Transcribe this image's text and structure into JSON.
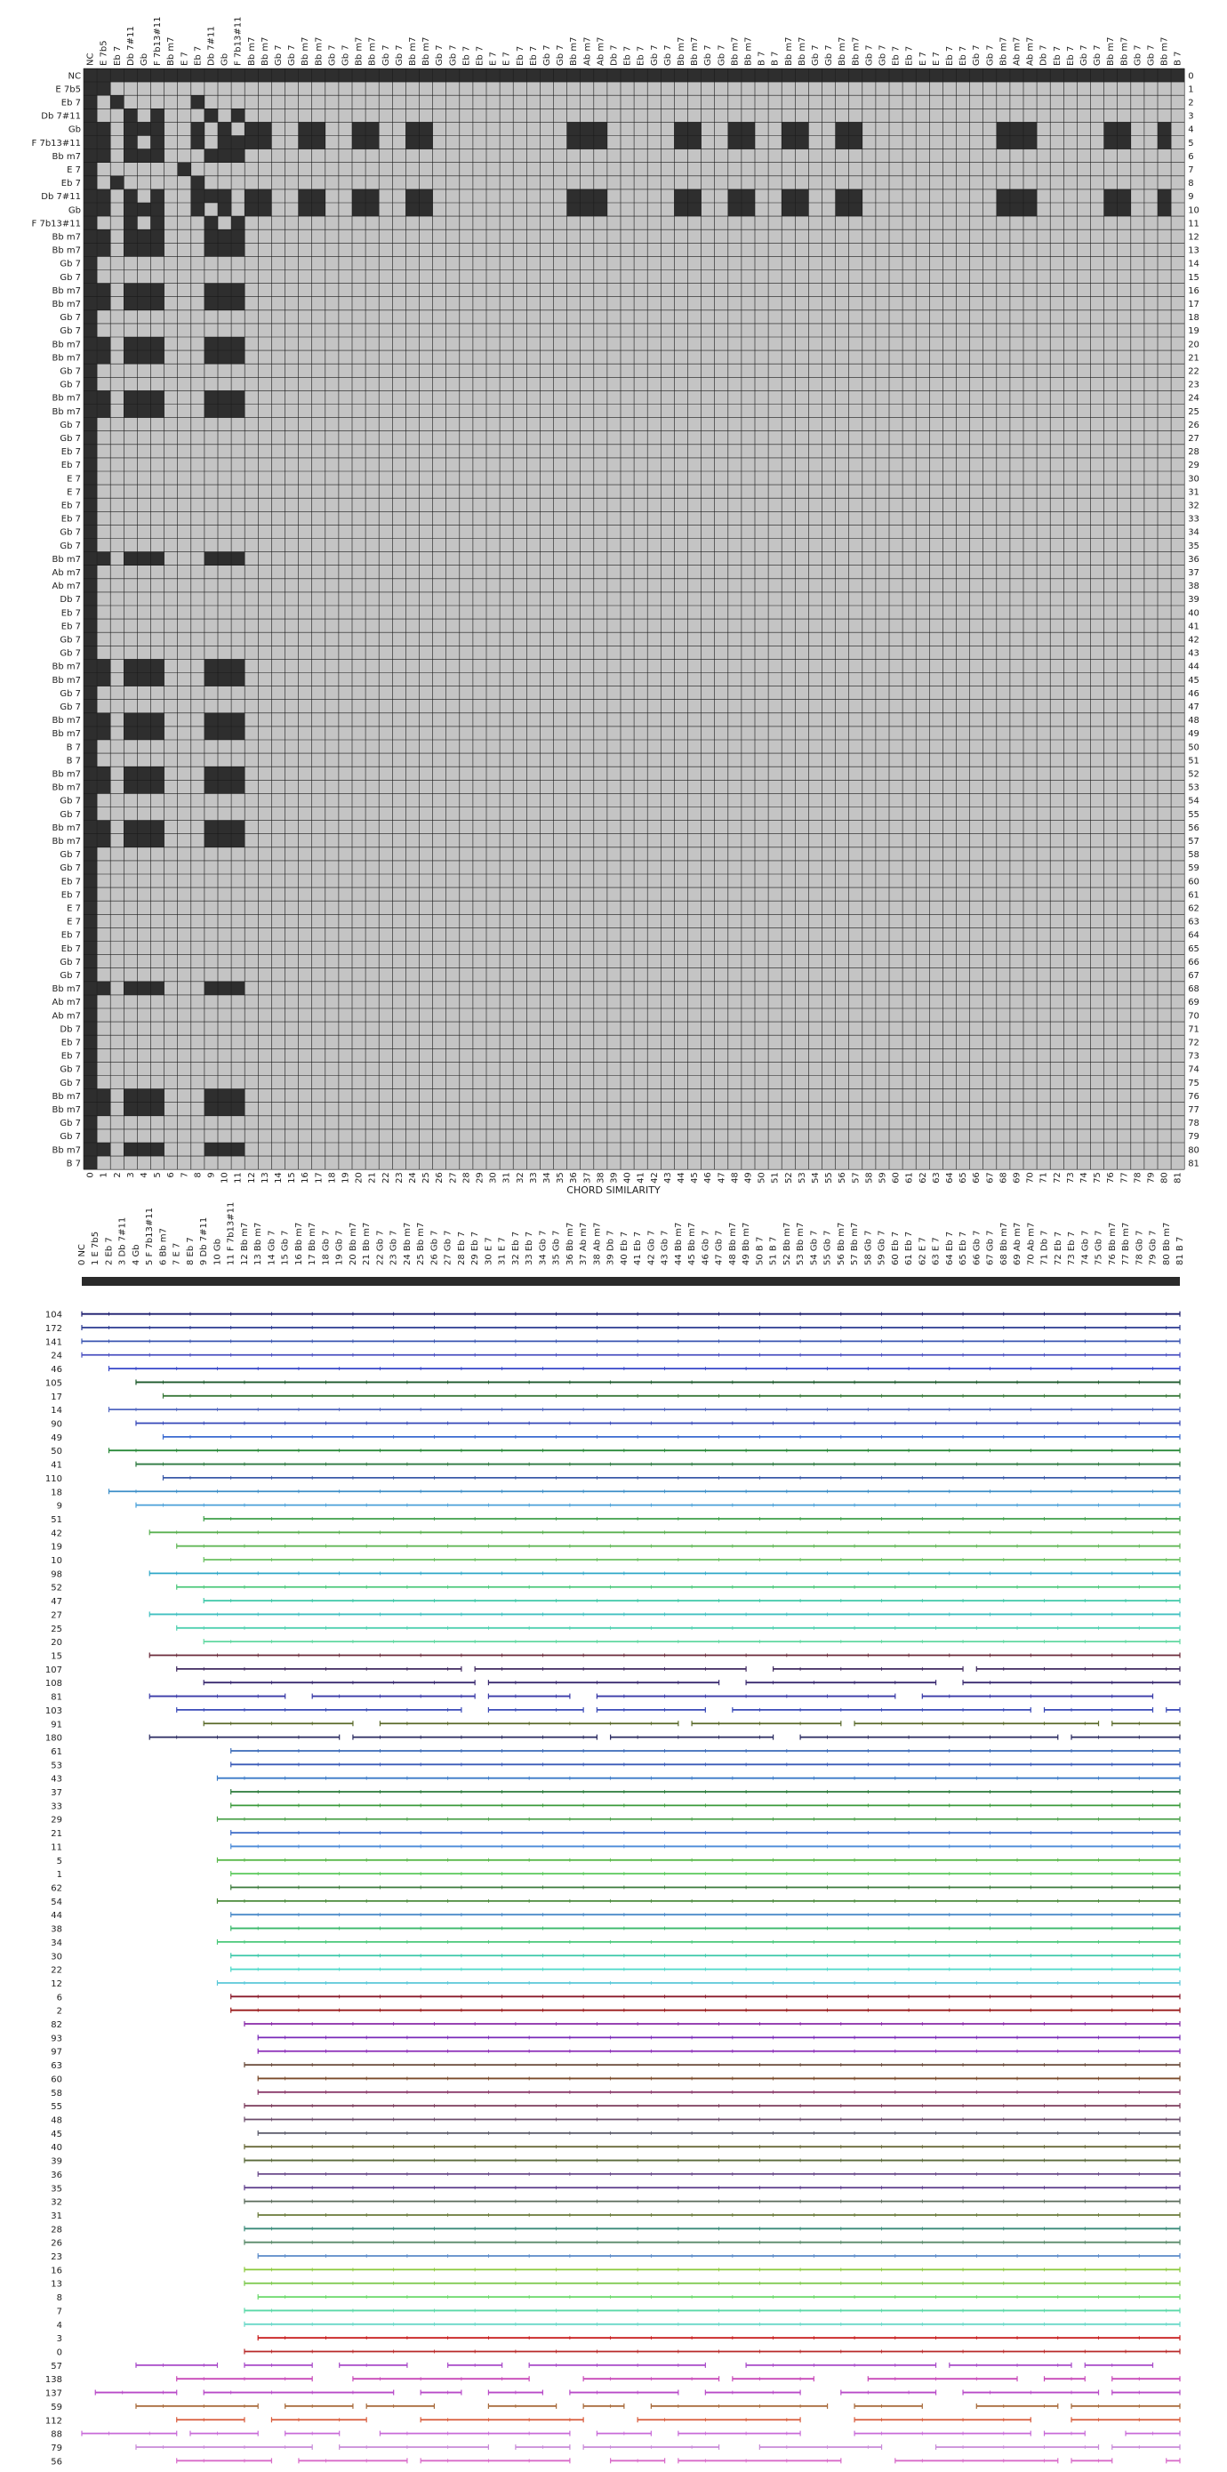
{
  "chord_labels": [
    "NC",
    "E 7b5",
    "Eb 7",
    "Db 7#11",
    "Gb",
    "F 7b13#11",
    "Bb m7",
    "E 7",
    "Eb 7",
    "Db 7#11",
    "Gb",
    "F 7b13#11",
    "Bb m7",
    "Bb m7",
    "Gb 7",
    "Gb 7",
    "Bb m7",
    "Bb m7",
    "Gb 7",
    "Gb 7",
    "Bb m7",
    "Bb m7",
    "Gb 7",
    "Gb 7",
    "Bb m7",
    "Bb m7",
    "Gb 7",
    "Gb 7",
    "Eb 7",
    "Eb 7",
    "E 7",
    "E 7",
    "Eb 7",
    "Eb 7",
    "Gb 7",
    "Gb 7",
    "Bb m7",
    "Ab m7",
    "Ab m7",
    "Db 7",
    "Eb 7",
    "Eb 7",
    "Gb 7",
    "Gb 7",
    "Bb m7",
    "Bb m7",
    "Gb 7",
    "Gb 7",
    "Bb m7",
    "Bb m7",
    "B 7",
    "B 7",
    "Bb m7",
    "Bb m7",
    "Gb 7",
    "Gb 7",
    "Bb m7",
    "Bb m7",
    "Gb 7",
    "Gb 7",
    "Eb 7",
    "Eb 7",
    "E 7",
    "E 7",
    "Eb 7",
    "Eb 7",
    "Gb 7",
    "Gb 7",
    "Bb m7",
    "Ab m7",
    "Ab m7",
    "Db 7",
    "Eb 7",
    "Eb 7",
    "Gb 7",
    "Gb 7",
    "Bb m7",
    "Bb m7",
    "Gb 7",
    "Gb 7",
    "Bb m7",
    "B 7"
  ],
  "chart_data": [
    {
      "type": "heatmap",
      "title": "",
      "xlabel": "CHORD SIMILARITY",
      "ylabel": "",
      "dimension": 82,
      "colors": {
        "similar": "#2e2e2e",
        "different": "#c4c4c4",
        "grid": "#1a1a1a"
      },
      "similar_pairs_rule": "cells at indices sharing the same chord class among columns 1-6 / 7-11 are dark; rows with full dark span mark repeated sections",
      "highlighted_columns": [
        12,
        13,
        16,
        17,
        20,
        21,
        24,
        25,
        36,
        37,
        38,
        44,
        45,
        48,
        49,
        52,
        53,
        56,
        57,
        68,
        69,
        70,
        76,
        77,
        80
      ],
      "highlighted_rows": [
        4,
        5,
        9,
        10
      ]
    },
    {
      "type": "line",
      "title": "",
      "xlabel": "",
      "ylabel": "",
      "x_range": [
        0,
        81
      ],
      "row_labels": [
        "104",
        "172",
        "141",
        "24",
        "46",
        "105",
        "17",
        "14",
        "90",
        "49",
        "50",
        "41",
        "110",
        "18",
        "9",
        "51",
        "42",
        "19",
        "10",
        "98",
        "52",
        "47",
        "27",
        "25",
        "20",
        "15",
        "107",
        "108",
        "81",
        "103",
        "91",
        "180",
        "61",
        "53",
        "43",
        "37",
        "33",
        "29",
        "21",
        "11",
        "5",
        "1",
        "62",
        "54",
        "44",
        "38",
        "34",
        "30",
        "22",
        "12",
        "6",
        "2",
        "82",
        "93",
        "97",
        "63",
        "60",
        "58",
        "55",
        "48",
        "45",
        "40",
        "39",
        "36",
        "35",
        "32",
        "31",
        "28",
        "26",
        "23",
        "16",
        "13",
        "8",
        "7",
        "4",
        "3",
        "0",
        "57",
        "138",
        "137",
        "59",
        "112",
        "88",
        "79",
        "56"
      ],
      "row_colors": [
        "#1c1c6e",
        "#2a3a90",
        "#3a55b0",
        "#4a4fc0",
        "#3747c9",
        "#1d5a2c",
        "#3b7a3b",
        "#5066c0",
        "#3547b8",
        "#3a6ad0",
        "#2a8a3a",
        "#2e7a40",
        "#3a5aa8",
        "#3d8ec8",
        "#4aa0d8",
        "#3fa04a",
        "#5ab050",
        "#63b858",
        "#6ac060",
        "#30a8c8",
        "#4ac87a",
        "#3fc8a8",
        "#40c0c0",
        "#50d0b0",
        "#60d8a0",
        "#6a2a3a",
        "#402a60",
        "#3a2a70",
        "#3a3aa8",
        "#3a4ab8",
        "#5a6a2a",
        "#2a2a60",
        "#3a6ab8",
        "#3a5ab8",
        "#3a7ac8",
        "#2a7a3a",
        "#3a9a3a",
        "#4aa04a",
        "#3a6ac8",
        "#4a8ad8",
        "#5ab84a",
        "#5ac85a",
        "#3a7a3a",
        "#4a8a3a",
        "#4a8ac8",
        "#3ab86a",
        "#4ac87a",
        "#3ac8a8",
        "#4ad8c8",
        "#5ac8d8",
        "#8a1a2a",
        "#9a1a1a",
        "#8a2aa8",
        "#7a2ab8",
        "#8a2ab8",
        "#6a4a3a",
        "#7a4a2a",
        "#8a3a6a",
        "#7a3a5a",
        "#6a4a6a",
        "#5a5a6a",
        "#6a6a3a",
        "#5a6a3a",
        "#6a4a8a",
        "#5a3a8a",
        "#5a6a5a",
        "#6a7a3a",
        "#3a8a7a",
        "#5a8a6a",
        "#5a8ac8",
        "#8ac83a",
        "#7ac84a",
        "#6ad86a",
        "#5ad8a8",
        "#6ad8c8",
        "#c81a1a",
        "#b82a2a",
        "#a84ac8",
        "#c84ab8",
        "#b84ac8",
        "#a86a3a",
        "#d85a3a",
        "#c86ad8",
        "#c88ad8",
        "#d86ac8"
      ]
    }
  ]
}
